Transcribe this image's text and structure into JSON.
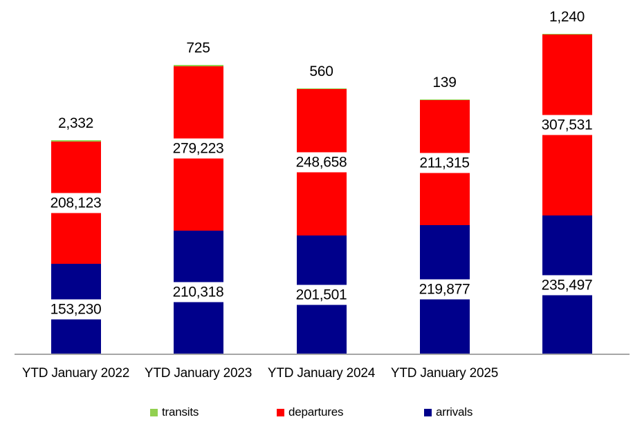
{
  "chart_data": {
    "type": "bar",
    "stacked": true,
    "title": "",
    "xlabel": "",
    "ylabel": "",
    "grid": false,
    "y_axis_visible": false,
    "ylim": [
      0,
      544268
    ],
    "axis_line_color": "#a6a6a6",
    "categories": [
      "YTD January 2022",
      "YTD January 2023",
      "YTD January 2024",
      "YTD January 2025",
      ""
    ],
    "series": [
      {
        "name": "arrivals",
        "color": "#00008B",
        "label_position": "inside-center",
        "values": [
          153230,
          210318,
          201501,
          219877,
          235497
        ],
        "display": [
          "153,230",
          "210,318",
          "201,501",
          "219,877",
          "235,497"
        ]
      },
      {
        "name": "departures",
        "color": "#FF0000",
        "label_position": "inside-center",
        "values": [
          208123,
          279223,
          248658,
          211315,
          307531
        ],
        "display": [
          "208,123",
          "279,223",
          "248,658",
          "211,315",
          "307,531"
        ]
      },
      {
        "name": "transits",
        "color": "#92D050",
        "label_position": "outside-end",
        "values": [
          2332,
          725,
          560,
          139,
          1240
        ],
        "display": [
          "2,332",
          "725",
          "560",
          "139",
          "1,240"
        ]
      }
    ],
    "legend": {
      "position": "bottom",
      "entries": [
        {
          "label": "transits",
          "color": "#92D050"
        },
        {
          "label": "departures",
          "color": "#FF0000"
        },
        {
          "label": "arrivals",
          "color": "#00008B"
        }
      ]
    }
  }
}
